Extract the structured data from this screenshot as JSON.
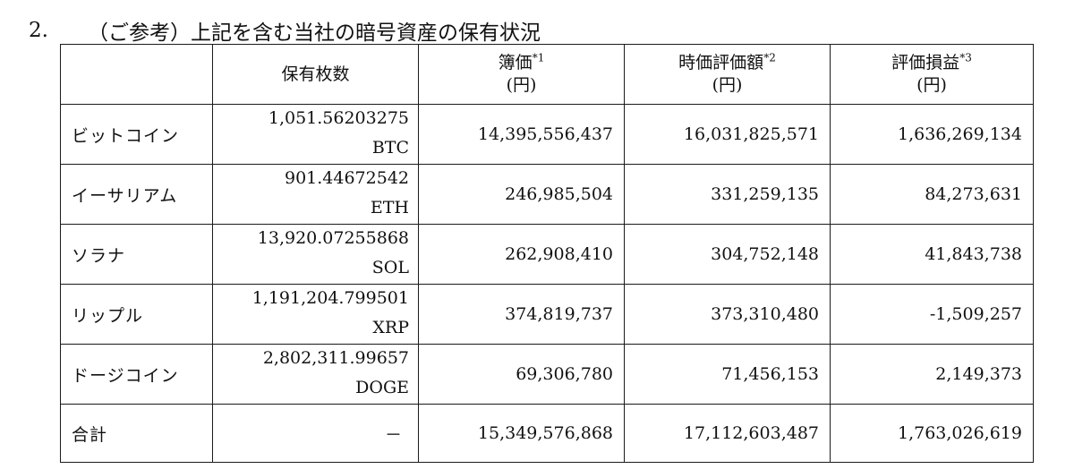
{
  "heading": {
    "number": "2.",
    "title": "（ご参考）上記を含む当社の暗号資産の保有状況"
  },
  "table": {
    "headers": {
      "blank": "",
      "holdings": "保有枚数",
      "book_value": "簿価",
      "book_value_note": "*1",
      "book_value_unit": "(円)",
      "market_value": "時価評価額",
      "market_value_note": "*2",
      "market_value_unit": "(円)",
      "valuation_gain": "評価損益",
      "valuation_gain_note": "*3",
      "valuation_gain_unit": "(円)"
    },
    "rows": [
      {
        "name": "ビットコイン",
        "quantity": "1,051.56203275",
        "ticker": "BTC",
        "book_value": "14,395,556,437",
        "market_value": "16,031,825,571",
        "gain": "1,636,269,134"
      },
      {
        "name": "イーサリアム",
        "quantity": "901.44672542",
        "ticker": "ETH",
        "book_value": "246,985,504",
        "market_value": "331,259,135",
        "gain": "84,273,631"
      },
      {
        "name": "ソラナ",
        "quantity": "13,920.07255868",
        "ticker": "SOL",
        "book_value": "262,908,410",
        "market_value": "304,752,148",
        "gain": "41,843,738"
      },
      {
        "name": "リップル",
        "quantity": "1,191,204.799501",
        "ticker": "XRP",
        "book_value": "374,819,737",
        "market_value": "373,310,480",
        "gain": "-1,509,257"
      },
      {
        "name": "ドージコイン",
        "quantity": "2,802,311.99657",
        "ticker": "DOGE",
        "book_value": "69,306,780",
        "market_value": "71,456,153",
        "gain": "2,149,373"
      }
    ],
    "total": {
      "name": "合計",
      "quantity": "－",
      "book_value": "15,349,576,868",
      "market_value": "17,112,603,487",
      "gain": "1,763,026,619"
    }
  }
}
